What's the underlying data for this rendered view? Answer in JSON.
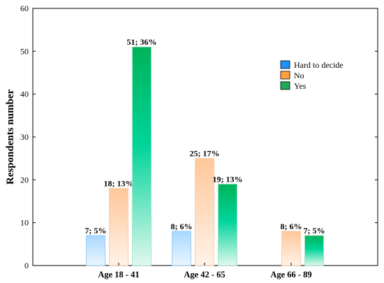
{
  "chart_data": {
    "type": "bar",
    "title": "",
    "xlabel": "",
    "ylabel": "Respondents number",
    "ylim": [
      0,
      60
    ],
    "yticks": [
      0,
      10,
      20,
      30,
      40,
      50,
      60
    ],
    "grid": false,
    "legend_placement": "top-right",
    "categories": [
      "Age 18 - 41",
      "Age 42 - 65",
      "Age 66 - 89"
    ],
    "series": [
      {
        "name": "Hard to decide",
        "color": "#1e90ff",
        "values": [
          7,
          8,
          null
        ],
        "labels": [
          "7; 5%",
          "8; 6%",
          ""
        ]
      },
      {
        "name": "No",
        "color": "#ff9f40",
        "values": [
          18,
          25,
          8
        ],
        "labels": [
          "18; 13%",
          "25; 17%",
          "8; 6%"
        ]
      },
      {
        "name": "Yes",
        "color": "#1faa55",
        "values": [
          51,
          19,
          7
        ],
        "labels": [
          "51; 36%",
          "19; 13%",
          "7; 5%"
        ]
      }
    ]
  }
}
